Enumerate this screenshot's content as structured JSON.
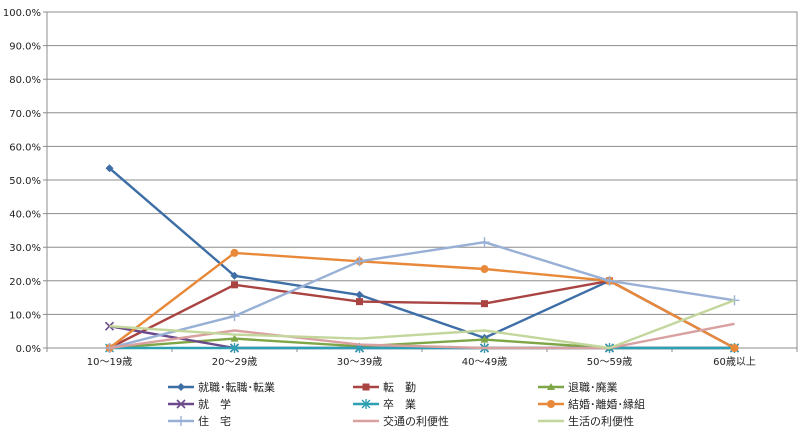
{
  "chart_data": {
    "type": "line",
    "categories": [
      "10～19歳",
      "20～29歳",
      "30～39歳",
      "40～49歳",
      "50～59歳",
      "60歳以上"
    ],
    "ylim": [
      0,
      100
    ],
    "y_ticks": [
      "0.0%",
      "10.0%",
      "20.0%",
      "30.0%",
      "40.0%",
      "50.0%",
      "60.0%",
      "70.0%",
      "80.0%",
      "90.0%",
      "100.0%"
    ],
    "grid": true,
    "legend_position": "bottom",
    "series": [
      {
        "name": "就職･転職･転業",
        "color": "#3e6ea6",
        "marker": "diamond",
        "values": [
          53.5,
          21.5,
          15.8,
          3.0,
          20.0,
          0.0
        ]
      },
      {
        "name": "転　勤",
        "color": "#a94442",
        "marker": "square",
        "values": [
          0.0,
          18.8,
          13.8,
          13.2,
          20.0,
          0.0
        ]
      },
      {
        "name": "退職･廃業",
        "color": "#7fa646",
        "marker": "triangle",
        "values": [
          0.0,
          2.8,
          0.5,
          2.5,
          0.0,
          0.0
        ]
      },
      {
        "name": "就　学",
        "color": "#6a4a8a",
        "marker": "x",
        "values": [
          6.5,
          0.0,
          0.0,
          0.0,
          0.0,
          0.0
        ]
      },
      {
        "name": "卒　業",
        "color": "#2ea0b4",
        "marker": "star",
        "values": [
          0.0,
          0.0,
          0.0,
          0.0,
          0.0,
          0.0
        ]
      },
      {
        "name": "結婚･離婚･縁組",
        "color": "#e8893a",
        "marker": "circle",
        "values": [
          0.0,
          28.3,
          25.8,
          23.5,
          20.0,
          0.0
        ]
      },
      {
        "name": "住　宅",
        "color": "#99b0d6",
        "marker": "plus",
        "values": [
          0.0,
          9.5,
          25.8,
          31.5,
          20.0,
          14.2
        ]
      },
      {
        "name": "交通の利便性",
        "color": "#d9a0a0",
        "marker": "none",
        "values": [
          0.0,
          5.2,
          1.0,
          0.0,
          0.0,
          7.2
        ]
      },
      {
        "name": "生活の利便性",
        "color": "#c3d69b",
        "marker": "none",
        "values": [
          6.5,
          4.0,
          2.8,
          5.2,
          0.0,
          14.2
        ]
      }
    ]
  }
}
